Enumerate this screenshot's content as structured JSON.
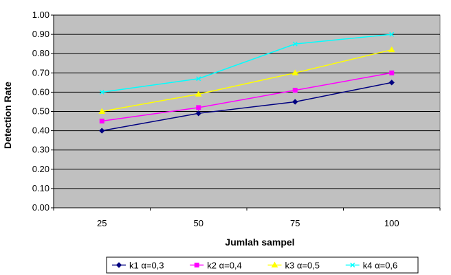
{
  "chart_data": {
    "type": "line",
    "xlabel": "Jumlah sampel",
    "ylabel": "Detection Rate",
    "categories": [
      "25",
      "50",
      "75",
      "100"
    ],
    "ylim": [
      0,
      1
    ],
    "yticks": [
      "0.00",
      "0.10",
      "0.20",
      "0.30",
      "0.40",
      "0.50",
      "0.60",
      "0.70",
      "0.80",
      "0.90",
      "1.00"
    ],
    "grid": true,
    "legend_position": "bottom",
    "plot_background": "#c0c0c0",
    "series": [
      {
        "name": "k1  α=0,3",
        "values": [
          0.4,
          0.49,
          0.55,
          0.65
        ],
        "color": "#000080",
        "marker": "diamond"
      },
      {
        "name": "k2  α=0,4",
        "values": [
          0.45,
          0.52,
          0.61,
          0.7
        ],
        "color": "#ff00ff",
        "marker": "square"
      },
      {
        "name": "k3  α=0,5",
        "values": [
          0.5,
          0.59,
          0.7,
          0.82
        ],
        "color": "#ffff00",
        "marker": "triangle"
      },
      {
        "name": "k4  α=0,6",
        "values": [
          0.6,
          0.67,
          0.85,
          0.9
        ],
        "color": "#00ffff",
        "marker": "x"
      }
    ]
  }
}
